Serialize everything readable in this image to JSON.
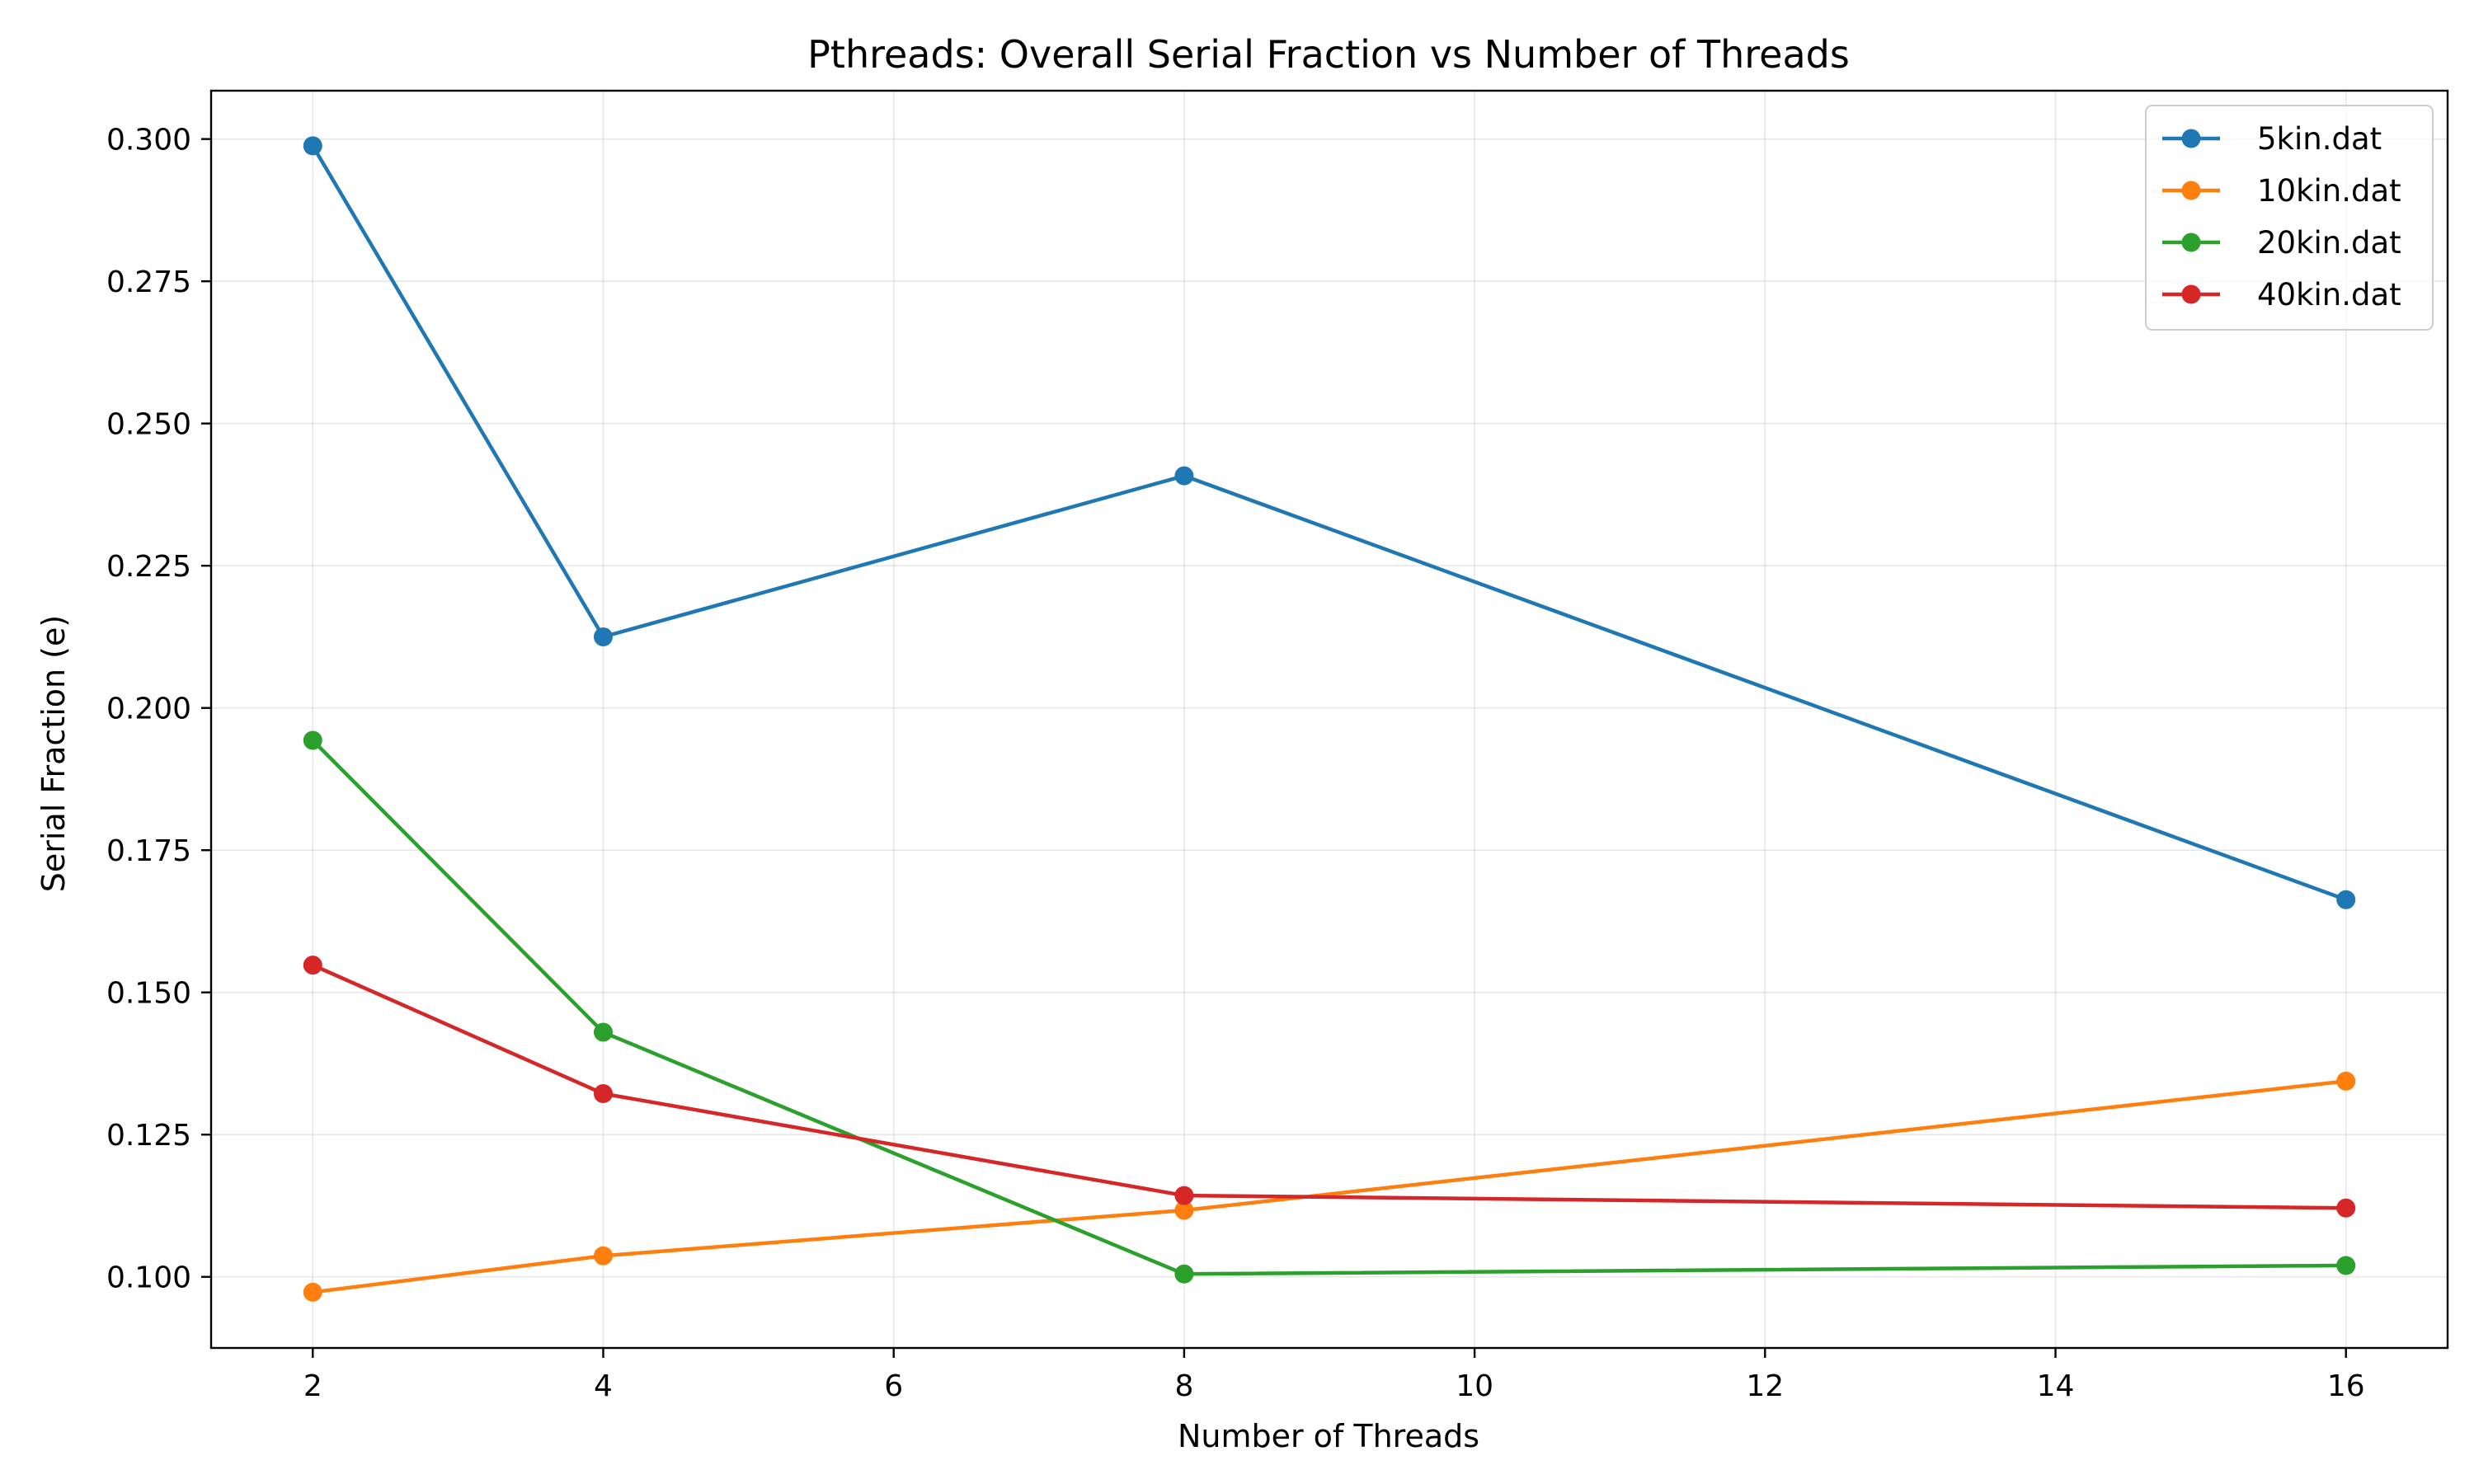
{
  "chart_data": {
    "type": "line",
    "title": "Pthreads: Overall Serial Fraction vs Number of Threads",
    "xlabel": "Number of Threads",
    "ylabel": "Serial Fraction (e)",
    "x": [
      2,
      4,
      8,
      16
    ],
    "xlim": [
      1.3,
      16.7
    ],
    "ylim": [
      0.0875,
      0.3085
    ],
    "xticks": [
      2,
      4,
      6,
      8,
      10,
      12,
      14,
      16
    ],
    "xtick_labels": [
      "2",
      "4",
      "6",
      "8",
      "10",
      "12",
      "14",
      "16"
    ],
    "yticks": [
      0.1,
      0.125,
      0.15,
      0.175,
      0.2,
      0.225,
      0.25,
      0.275,
      0.3
    ],
    "ytick_labels": [
      "0.100",
      "0.125",
      "0.150",
      "0.175",
      "0.200",
      "0.225",
      "0.250",
      "0.275",
      "0.300"
    ],
    "grid": true,
    "legend_position": "top-right",
    "series": [
      {
        "name": "5kin.dat",
        "color": "#1f77b4",
        "values": [
          0.2988,
          0.2125,
          0.2408,
          0.1663
        ]
      },
      {
        "name": "10kin.dat",
        "color": "#ff7f0e",
        "values": [
          0.0973,
          0.1037,
          0.1117,
          0.1344
        ]
      },
      {
        "name": "20kin.dat",
        "color": "#2ca02c",
        "values": [
          0.1943,
          0.143,
          0.1005,
          0.102
        ]
      },
      {
        "name": "40kin.dat",
        "color": "#d62728",
        "values": [
          0.1548,
          0.1322,
          0.1143,
          0.1121
        ]
      }
    ]
  }
}
